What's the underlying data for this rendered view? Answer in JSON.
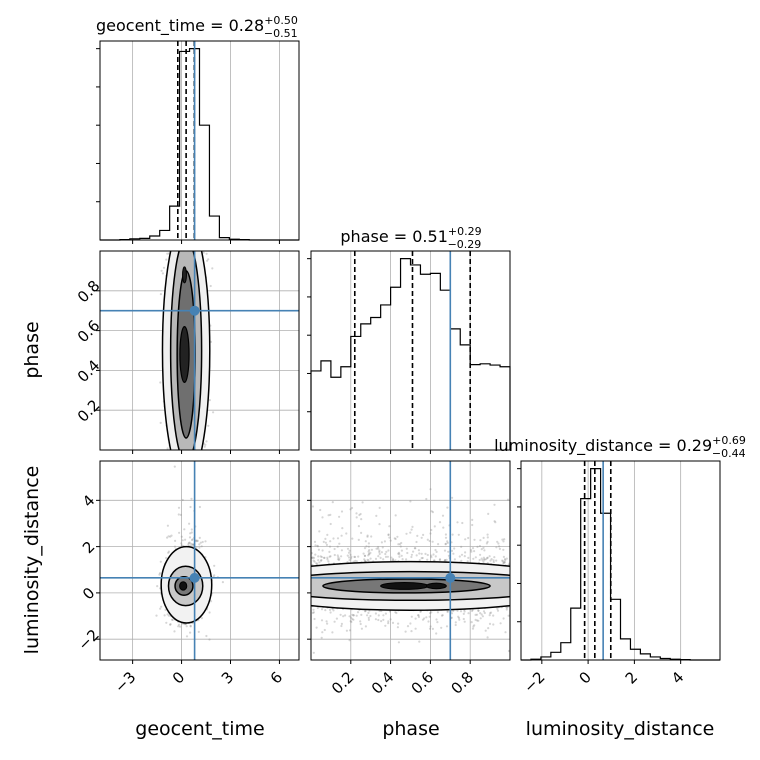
{
  "chart_data": {
    "type": "corner",
    "parameters": [
      "geocent_time",
      "phase",
      "luminosity_distance"
    ],
    "truth": {
      "geocent_time": 0.8,
      "phase": 0.7,
      "luminosity_distance": 0.65
    },
    "truth_color": "#4682b4",
    "grid": true,
    "titles": [
      {
        "param": "geocent_time",
        "prefix": "geocent_time = 0.28",
        "plus": "+0.50",
        "minus": "−0.51"
      },
      {
        "param": "phase",
        "prefix": "phase = 0.51",
        "plus": "+0.29",
        "minus": "−0.29"
      },
      {
        "param": "luminosity_distance",
        "prefix": "luminosity_distance = 0.29",
        "plus": "+0.69",
        "minus": "−0.44"
      }
    ],
    "axes": {
      "geocent_time": {
        "range": [
          -5.0,
          7.2
        ],
        "ticks": [
          -3,
          0,
          3,
          6
        ],
        "tick_labels": [
          "−3",
          "0",
          "3",
          "6"
        ]
      },
      "phase": {
        "range": [
          0.0,
          1.0
        ],
        "ticks": [
          0.2,
          0.4,
          0.6,
          0.8
        ],
        "tick_labels": [
          "0.2",
          "0.4",
          "0.6",
          "0.8"
        ]
      },
      "luminosity_distance": {
        "range": [
          -2.9,
          5.7
        ],
        "ticks": [
          -2,
          0,
          2,
          4
        ],
        "tick_labels": [
          "−2",
          "0",
          "2",
          "4"
        ]
      }
    },
    "histograms": {
      "geocent_time": {
        "bin_edges": [
          -5.0,
          -4.39,
          -3.78,
          -3.17,
          -2.56,
          -1.95,
          -1.34,
          -0.73,
          -0.12,
          0.49,
          1.1,
          1.71,
          2.32,
          2.93,
          3.54,
          4.15,
          4.76,
          5.37,
          5.98,
          6.59,
          7.2
        ],
        "counts": [
          0,
          0,
          1,
          3,
          4,
          10,
          24,
          85,
          473,
          480,
          288,
          60,
          6,
          2,
          1,
          0,
          0,
          0,
          0,
          0
        ],
        "quantiles": [
          -0.23,
          0.28,
          0.78
        ]
      },
      "phase": {
        "bin_edges": [
          0.0,
          0.05,
          0.1,
          0.15,
          0.2,
          0.25,
          0.3,
          0.35,
          0.4,
          0.45,
          0.5,
          0.55,
          0.6,
          0.65,
          0.7,
          0.75,
          0.8,
          0.85,
          0.9,
          0.95,
          1.0
        ],
        "counts": [
          188,
          212,
          173,
          198,
          270,
          300,
          315,
          345,
          387,
          455,
          440,
          418,
          420,
          380,
          288,
          250,
          203,
          205,
          202,
          198
        ],
        "quantiles": [
          0.22,
          0.51,
          0.8
        ]
      },
      "luminosity_distance": {
        "bin_edges": [
          -2.9,
          -2.47,
          -2.04,
          -1.61,
          -1.18,
          -0.75,
          -0.32,
          0.11,
          0.54,
          0.97,
          1.4,
          1.83,
          2.26,
          2.69,
          3.12,
          3.55,
          3.98,
          4.41,
          4.84,
          5.27,
          5.7
        ],
        "counts": [
          0,
          2,
          8,
          20,
          45,
          135,
          420,
          498,
          382,
          158,
          55,
          28,
          16,
          8,
          4,
          2,
          1,
          0,
          0,
          0
        ],
        "quantiles": [
          -0.15,
          0.29,
          0.98
        ]
      }
    }
  }
}
